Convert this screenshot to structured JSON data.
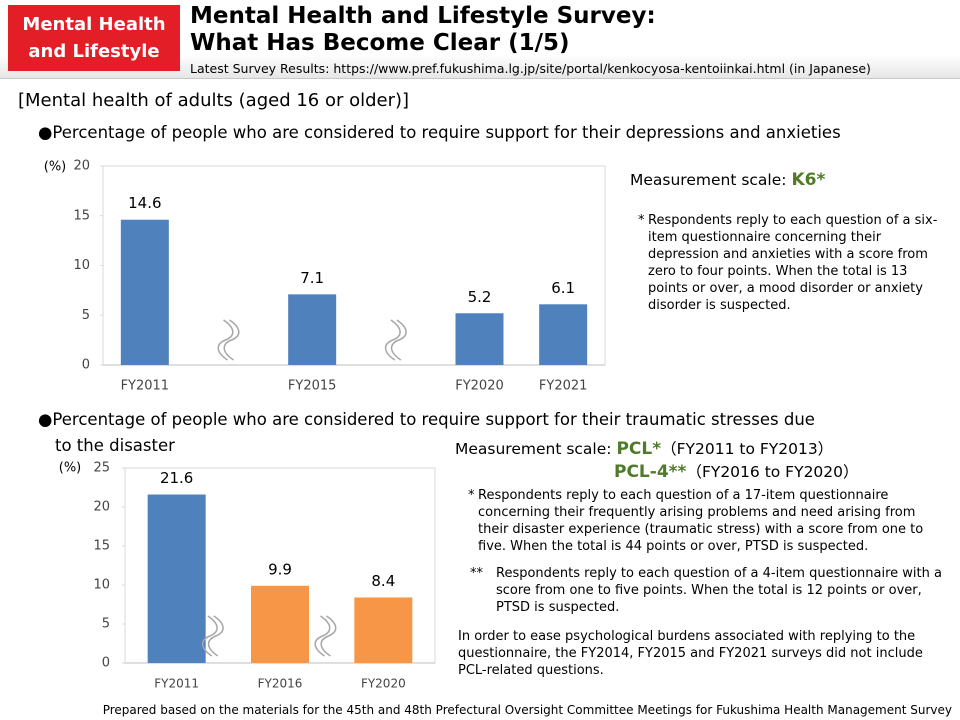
{
  "header": {
    "badge": [
      "Mental Health",
      "and Lifestyle"
    ],
    "title": [
      "Mental Health and Lifestyle Survey:",
      "What Has Become Clear (1/5)"
    ],
    "source": "Latest Survey Results: https://www.pref.fukushima.lg.jp/site/portal/kenkocyosa-kentoiinkai.html (in Japanese)"
  },
  "section": "[Mental health of adults (aged 16 or older)]",
  "chart_data": [
    {
      "type": "bar",
      "title": [
        "Percentage of people who are considered to require support for their depressions and anxieties"
      ],
      "y_label": "(%)",
      "categories": [
        "FY2011",
        "FY2015",
        "FY2020",
        "FY2021"
      ],
      "values": [
        14.6,
        7.1,
        5.2,
        6.1
      ],
      "color": "#4f81bd",
      "ylim": [
        0,
        20
      ],
      "yticks": [
        0,
        5,
        10,
        15,
        20
      ]
    },
    {
      "type": "bar",
      "title": [
        "Percentage of people who are considered to require support for their traumatic stresses due",
        "to the disaster"
      ],
      "y_label": "(%)",
      "categories": [
        "FY2011",
        "FY2016",
        "FY2020"
      ],
      "values": [
        21.6,
        9.9,
        8.4
      ],
      "colors": [
        "#4f81bd",
        "#f79646",
        "#f79646"
      ],
      "ylim": [
        0,
        25
      ],
      "yticks": [
        0,
        5,
        10,
        15,
        20,
        25
      ]
    }
  ],
  "scale1": {
    "label": "Measurement scale:",
    "name": "K6*",
    "note": {
      "marker": "*",
      "text": "Respondents reply to each question of a six-item questionnaire concerning their depression and anxieties with a score from zero to four points. When the total is 13 points or over, a mood disorder or anxiety disorder is suspected."
    }
  },
  "scale2": {
    "label": "Measurement scale:",
    "name1": "PCL*",
    "period1": "（FY2011 to FY2013）",
    "name2": "PCL-4**",
    "period2": "（FY2016 to FY2020）",
    "notes": [
      {
        "marker": "*",
        "text": "Respondents reply to each question of a 17-item questionnaire concerning their frequently arising problems and need arising from their disaster experience (traumatic stress) with a score from one to five. When the total is 44 points or over, PTSD is suspected."
      },
      {
        "marker": "**",
        "text": "Respondents reply to each question of a 4-item questionnaire with a score from one to five points. When the total is 12 points or over, PTSD is suspected."
      }
    ],
    "remark": "In order to ease psychological burdens associated with replying to the questionnaire, the FY2014, FY2015 and FY2021 surveys did not include PCL-related questions."
  },
  "footer": "Prepared based on the materials for the 45th and 48th Prefectural Oversight Committee Meetings for Fukushima Health Management Survey"
}
